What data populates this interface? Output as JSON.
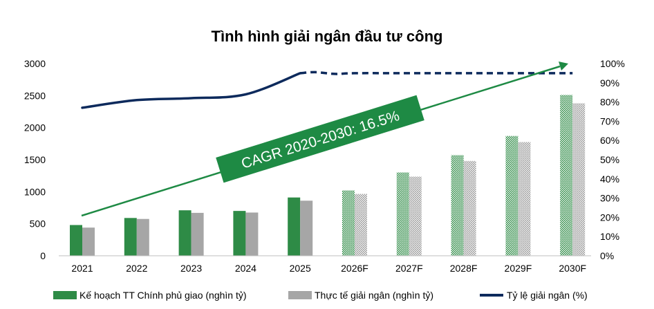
{
  "chart_data": {
    "type": "bar",
    "title": "Tình hình giải ngân đầu tư công",
    "categories": [
      "2021",
      "2022",
      "2023",
      "2024",
      "2025",
      "2026F",
      "2027F",
      "2028F",
      "2029F",
      "2030F"
    ],
    "series": [
      {
        "name": "Kế hoạch TT Chính phủ giao (nghìn tỷ)",
        "type": "bar",
        "axis": "left",
        "color": "#2e8b46",
        "values": [
          480,
          590,
          710,
          700,
          910,
          1020,
          1300,
          1570,
          1870,
          2510
        ]
      },
      {
        "name": "Thực tế giải ngân (nghìn tỷ)",
        "type": "bar",
        "axis": "left",
        "color": "#a6a6a6",
        "values": [
          440,
          575,
          670,
          675,
          860,
          965,
          1235,
          1480,
          1775,
          2380
        ]
      },
      {
        "name": "Tỷ lệ giải ngân (%)",
        "type": "line",
        "axis": "right",
        "color": "#0d2a5c",
        "values": [
          77,
          81,
          82,
          84,
          95,
          95,
          95,
          95,
          95,
          95
        ],
        "dashed_from_index": 4
      }
    ],
    "forecast_start_index": 5,
    "y_left": {
      "min": 0,
      "max": 3000,
      "ticks": [
        0,
        500,
        1000,
        1500,
        2000,
        2500,
        3000
      ]
    },
    "y_right": {
      "min": 0,
      "max": 100,
      "ticks": [
        "0%",
        "10%",
        "20%",
        "30%",
        "40%",
        "50%",
        "60%",
        "70%",
        "80%",
        "90%",
        "100%"
      ]
    },
    "annotation": {
      "text": "CAGR 2020-2030: 16.5%",
      "color": "#1e8a44"
    },
    "grid": false,
    "legend_position": "bottom"
  }
}
